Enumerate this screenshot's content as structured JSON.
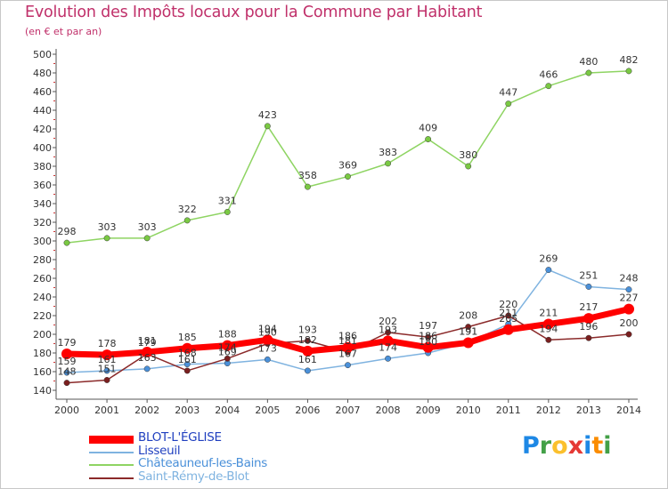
{
  "title": "Evolution des Impôts locaux pour la Commune par Habitant",
  "subtitle": "(en € et par an)",
  "brand": {
    "letters": [
      "P",
      "r",
      "o",
      "x",
      "i",
      "t",
      "i"
    ],
    "colors": [
      "#1e88e5",
      "#43a047",
      "#fbc02d",
      "#e53935",
      "#1e88e5",
      "#fb8c00",
      "#43a047"
    ]
  },
  "chart_data": {
    "type": "line",
    "x": [
      "2000",
      "2001",
      "2002",
      "2003",
      "2004",
      "2005",
      "2006",
      "2007",
      "2008",
      "2009",
      "2010",
      "2011",
      "2012",
      "2013",
      "2014"
    ],
    "ylim": [
      140,
      500
    ],
    "yticks": [
      140,
      160,
      180,
      200,
      220,
      240,
      260,
      280,
      300,
      320,
      340,
      360,
      380,
      400,
      420,
      440,
      460,
      480,
      500
    ],
    "grid": false,
    "legend_position": "bottom-left",
    "series": [
      {
        "name": "Châteauneuf-les-Bains",
        "color": "#8ed462",
        "marker": "#7ac943",
        "width": 1.5,
        "values": [
          298,
          303,
          303,
          322,
          331,
          423,
          358,
          369,
          383,
          409,
          380,
          447,
          466,
          480,
          482
        ],
        "labels": true
      },
      {
        "name": "Lisseuil",
        "color": "#7fb3e0",
        "marker": "#4a90d9",
        "width": 1.5,
        "values": [
          159,
          161,
          163,
          168,
          169,
          173,
          161,
          167,
          174,
          180,
          191,
          211,
          269,
          251,
          248
        ],
        "labels": true
      },
      {
        "name": "Saint-Rémy-de-Blot",
        "color": "#8b2a2a",
        "marker": "#7a1f1f",
        "width": 1.5,
        "values": [
          148,
          151,
          179,
          161,
          174,
          190,
          193,
          181,
          202,
          197,
          208,
          220,
          194,
          196,
          200
        ],
        "labels": true
      },
      {
        "name": "BLOT-L'ÉGLISE",
        "color": "#ff0000",
        "marker": "#ff0000",
        "width": 7,
        "values": [
          179,
          178,
          181,
          185,
          188,
          194,
          182,
          186,
          193,
          186,
          191,
          205,
          211,
          217,
          227
        ],
        "labels": true
      }
    ]
  }
}
